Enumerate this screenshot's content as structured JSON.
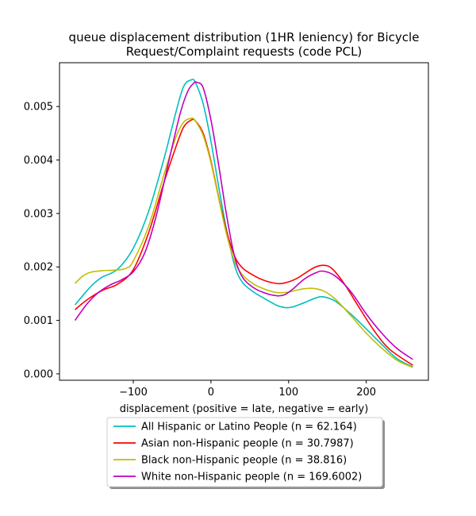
{
  "chart_data": {
    "type": "line",
    "title": "queue displacement distribution (1HR leniency) for Bicycle\nRequest/Complaint  requests (code PCL)",
    "xlabel": "displacement (positive = late, negative = early)",
    "ylabel": "",
    "xlim": [
      -195,
      280
    ],
    "ylim": [
      -0.00012,
      0.00582
    ],
    "xticks": [
      -100,
      0,
      100,
      200
    ],
    "xtick_labels": [
      "−100",
      "0",
      "100",
      "200"
    ],
    "yticks": [
      0.0,
      0.001,
      0.002,
      0.003,
      0.004,
      0.005
    ],
    "ytick_labels": [
      "0.000",
      "0.001",
      "0.002",
      "0.003",
      "0.004",
      "0.005"
    ],
    "grid": false,
    "legend_position": "below the plot, centered",
    "series": [
      {
        "name": "All Hispanic or Latino People (n = 62.164)",
        "color": "#00bfbf",
        "x": [
          -175,
          -160,
          -150,
          -140,
          -120,
          -100,
          -80,
          -60,
          -45,
          -35,
          -25,
          -20,
          -10,
          0,
          10,
          20,
          30,
          40,
          55,
          70,
          85,
          95,
          105,
          120,
          135,
          145,
          160,
          180,
          200,
          220,
          240,
          260
        ],
        "y": [
          0.00129,
          0.00155,
          0.0017,
          0.00181,
          0.00196,
          0.00235,
          0.00305,
          0.00405,
          0.0049,
          0.00538,
          0.0055,
          0.00545,
          0.00505,
          0.00435,
          0.0035,
          0.0027,
          0.00205,
          0.00172,
          0.00153,
          0.0014,
          0.00128,
          0.00124,
          0.00125,
          0.00133,
          0.00142,
          0.00144,
          0.00136,
          0.00112,
          0.00084,
          0.00055,
          0.00028,
          0.00013
        ]
      },
      {
        "name": "Asian non-Hispanic people (n = 30.7987)",
        "color": "#ff0000",
        "x": [
          -175,
          -160,
          -140,
          -120,
          -100,
          -80,
          -60,
          -45,
          -35,
          -25,
          -20,
          -10,
          0,
          10,
          20,
          30,
          40,
          55,
          70,
          85,
          95,
          110,
          125,
          135,
          145,
          155,
          170,
          190,
          210,
          230,
          260
        ],
        "y": [
          0.0012,
          0.00138,
          0.00156,
          0.00168,
          0.00195,
          0.00265,
          0.0036,
          0.00425,
          0.00462,
          0.00475,
          0.00473,
          0.0045,
          0.00398,
          0.0033,
          0.00268,
          0.00222,
          0.00199,
          0.00184,
          0.00174,
          0.00169,
          0.0017,
          0.00178,
          0.00192,
          0.002,
          0.00203,
          0.00198,
          0.00172,
          0.00126,
          0.00081,
          0.00046,
          0.00016
        ]
      },
      {
        "name": "Black non-Hispanic people (n = 38.816)",
        "color": "#bfbf00",
        "x": [
          -175,
          -165,
          -155,
          -140,
          -125,
          -110,
          -100,
          -80,
          -60,
          -45,
          -35,
          -25,
          -20,
          -10,
          0,
          10,
          20,
          30,
          40,
          55,
          70,
          85,
          100,
          115,
          130,
          145,
          160,
          180,
          200,
          220,
          240,
          260
        ],
        "y": [
          0.00169,
          0.00183,
          0.0019,
          0.00193,
          0.00194,
          0.00197,
          0.00211,
          0.00277,
          0.00375,
          0.00443,
          0.00471,
          0.00478,
          0.00473,
          0.00446,
          0.00395,
          0.00328,
          0.00262,
          0.00212,
          0.00186,
          0.00168,
          0.00158,
          0.00152,
          0.00153,
          0.00158,
          0.0016,
          0.00155,
          0.0014,
          0.00109,
          0.00076,
          0.00048,
          0.00025,
          0.00012
        ]
      },
      {
        "name": "White non-Hispanic people (n = 169.6002)",
        "color": "#bf00bf",
        "x": [
          -175,
          -160,
          -145,
          -130,
          -115,
          -100,
          -85,
          -70,
          -55,
          -40,
          -30,
          -22,
          -18,
          -10,
          0,
          10,
          20,
          30,
          40,
          55,
          70,
          85,
          95,
          105,
          120,
          135,
          145,
          160,
          180,
          200,
          220,
          240,
          260
        ],
        "y": [
          0.001,
          0.0013,
          0.00152,
          0.00166,
          0.00176,
          0.00191,
          0.00227,
          0.00298,
          0.00393,
          0.00485,
          0.00528,
          0.00544,
          0.00545,
          0.00535,
          0.00475,
          0.0039,
          0.00298,
          0.00222,
          0.00182,
          0.00161,
          0.00151,
          0.00146,
          0.00148,
          0.00158,
          0.00177,
          0.00189,
          0.00192,
          0.00183,
          0.00154,
          0.00112,
          0.00076,
          0.00047,
          0.00027
        ]
      }
    ]
  }
}
